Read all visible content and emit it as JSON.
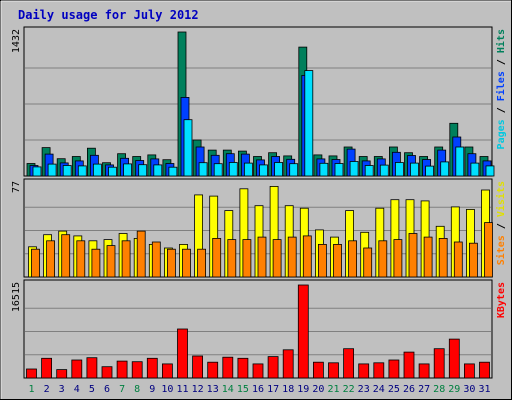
{
  "chart_data": {
    "type": "bar",
    "title": "Daily usage for July 2012",
    "days": [
      "1",
      "2",
      "3",
      "4",
      "5",
      "6",
      "7",
      "8",
      "9",
      "10",
      "11",
      "12",
      "13",
      "14",
      "15",
      "16",
      "17",
      "18",
      "19",
      "20",
      "21",
      "22",
      "23",
      "24",
      "25",
      "26",
      "27",
      "28",
      "29",
      "30",
      "31"
    ],
    "weekend_days": [
      "1",
      "7",
      "8",
      "14",
      "15",
      "21",
      "22",
      "28",
      "29"
    ],
    "colors": {
      "background": "#C0C0C0",
      "grid": "#808080",
      "title": "#0000C0",
      "axis_text": "#000000",
      "weekday_label": "#000080",
      "weekend_label": "#008040",
      "hits": "#00805C",
      "files": "#0040FF",
      "pages": "#00E0FF",
      "visits": "#FFFF00",
      "sites": "#FF8000",
      "kbytes": "#FF0000"
    },
    "panels": [
      {
        "name": "hits-files-pages",
        "ymax": 1432,
        "ymax_label": "1432",
        "legend": [
          {
            "text": "Pages",
            "color": "#00C8E0"
          },
          {
            "text": " / ",
            "color": "#000000"
          },
          {
            "text": "Files",
            "color": "#0040FF"
          },
          {
            "text": " / ",
            "color": "#000000"
          },
          {
            "text": "Hits",
            "color": "#00805C"
          }
        ],
        "series": [
          {
            "name": "Hits",
            "key": "hits",
            "values": [
              124,
              282,
              172,
              194,
              276,
              132,
              222,
              194,
              210,
              162,
              1432,
              358,
              258,
              258,
              248,
              194,
              232,
              200,
              1282,
              210,
              200,
              288,
              194,
              194,
              288,
              232,
              194,
              288,
              524,
              288,
              194
            ]
          },
          {
            "name": "Files",
            "key": "files",
            "values": [
              104,
              218,
              130,
              150,
              206,
              110,
              176,
              154,
              170,
              124,
              782,
              288,
              206,
              222,
              218,
              160,
              194,
              166,
              1000,
              170,
              164,
              268,
              150,
              170,
              236,
              204,
              164,
              258,
              388,
              222,
              150
            ]
          },
          {
            "name": "Pages",
            "key": "pages",
            "values": [
              90,
              118,
              104,
              100,
              118,
              88,
              120,
              112,
              110,
              88,
              560,
              132,
              122,
              134,
              128,
              110,
              134,
              122,
              1048,
              126,
              124,
              144,
              104,
              108,
              134,
              128,
              98,
              140,
              288,
              128,
              100
            ]
          }
        ]
      },
      {
        "name": "visits-sites",
        "ymax": 77,
        "ymax_label": "77",
        "legend": [
          {
            "text": "Sites",
            "color": "#FF8000"
          },
          {
            "text": " / ",
            "color": "#000000"
          },
          {
            "text": "Visits",
            "color": "#E0E000"
          }
        ],
        "series": [
          {
            "name": "Visits",
            "key": "visits",
            "values": [
              25,
              35,
              38,
              34,
              30,
              31,
              36,
              32,
              27,
              24,
              27,
              68,
              67,
              55,
              73,
              59,
              75,
              59,
              57,
              39,
              33,
              55,
              37,
              57,
              64,
              64,
              63,
              42,
              58,
              56,
              72
            ]
          },
          {
            "name": "Sites",
            "key": "sites",
            "values": [
              23,
              30,
              35,
              30,
              23,
              26,
              30,
              38,
              29,
              23,
              23,
              23,
              32,
              31,
              31,
              33,
              31,
              33,
              34,
              27,
              27,
              30,
              24,
              30,
              31,
              36,
              33,
              32,
              29,
              28,
              45
            ]
          }
        ]
      },
      {
        "name": "kbytes",
        "ymax": 16515,
        "ymax_label": "16515",
        "legend": [
          {
            "text": "KBytes",
            "color": "#FF0000"
          }
        ],
        "series": [
          {
            "name": "KBytes",
            "key": "kbytes",
            "values": [
              1600,
              3500,
              1500,
              3200,
              3600,
              2000,
              3000,
              2900,
              3500,
              2500,
              8700,
              3900,
              2800,
              3700,
              3500,
              2500,
              3800,
              5000,
              16515,
              2800,
              2700,
              5200,
              2500,
              2700,
              3200,
              4600,
              2500,
              5200,
              6900,
              2500,
              2800
            ]
          }
        ]
      }
    ]
  }
}
